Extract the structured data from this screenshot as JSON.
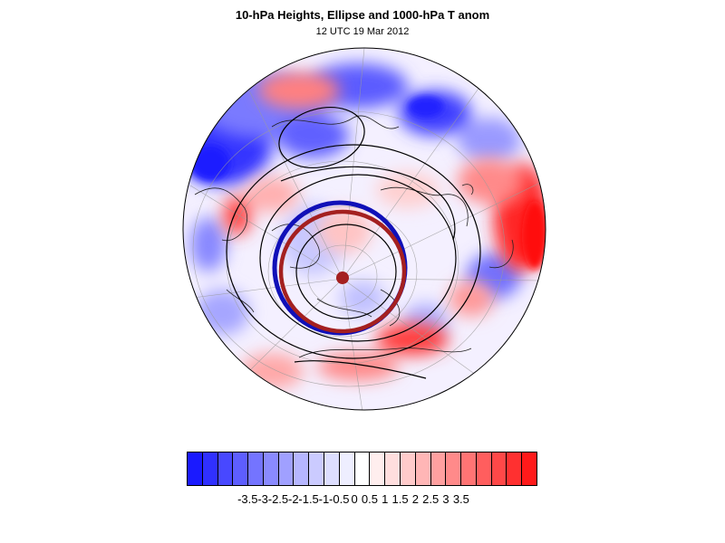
{
  "title": "10-hPa Heights, Ellipse and 1000-hPa T anom",
  "subtitle": "12 UTC 19 Mar 2012",
  "projection": "orthographic, north polar",
  "colors": {
    "cold": "#1a1aff",
    "warm": "#ff1a1a",
    "contour": "#000000",
    "ellipse_blue": "#1010b8",
    "ellipse_red": "#a42020"
  },
  "colorbar": {
    "colors": [
      "#1a1aff",
      "#3030ff",
      "#4848ff",
      "#5e5eff",
      "#7474ff",
      "#8a8aff",
      "#a0a0ff",
      "#b6b6ff",
      "#cbcbff",
      "#dddeff",
      "#eeeeff",
      "#ffffff",
      "#ffeeee",
      "#ffdede",
      "#ffcbcb",
      "#ffb6b6",
      "#ffa0a0",
      "#ff8a8a",
      "#ff7474",
      "#ff5e5e",
      "#ff4848",
      "#ff3030",
      "#ff1a1a"
    ],
    "labels": [
      "-3.5",
      "-3",
      "-2.5",
      "-2",
      "-1.5",
      "-1",
      "-0.5",
      "0",
      "0.5",
      "1",
      "1.5",
      "2",
      "2.5",
      "3",
      "3.5"
    ]
  }
}
